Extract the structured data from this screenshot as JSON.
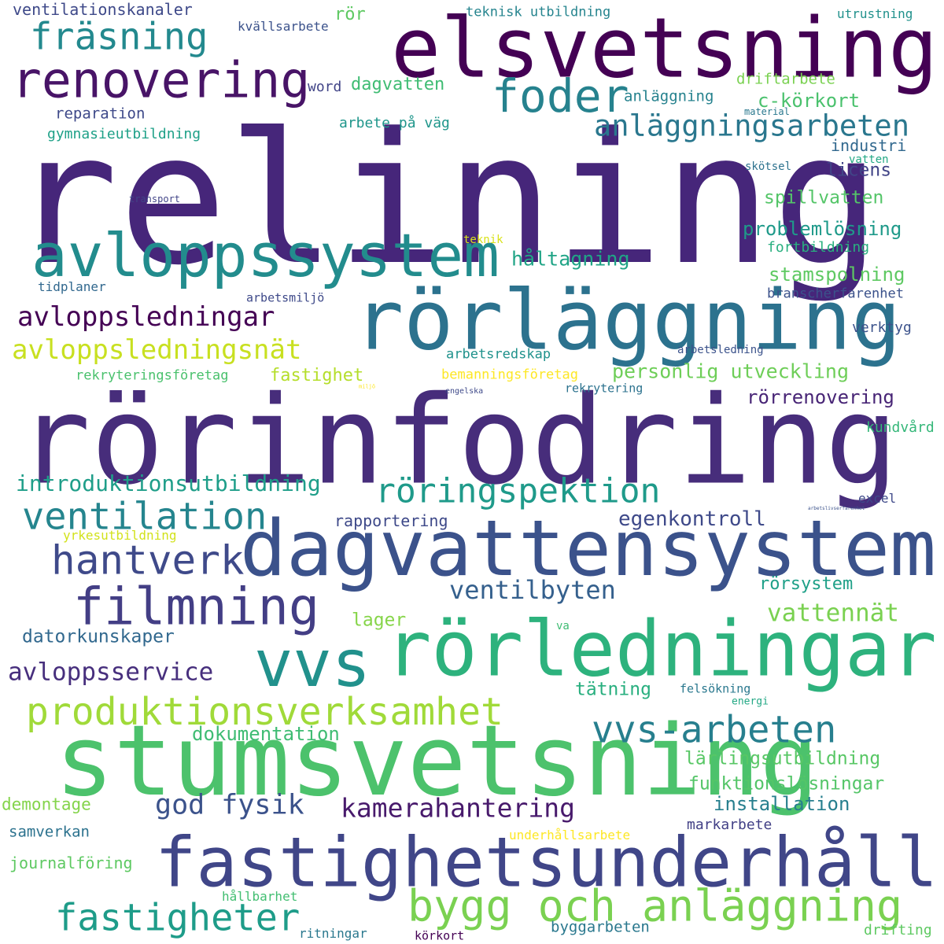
{
  "word_cloud": {
    "words": [
      {
        "text": "relining",
        "color": "#46267a"
      },
      {
        "text": "rörinfodring",
        "color": "#472d7b"
      },
      {
        "text": "elsvetsning",
        "color": "#440154"
      },
      {
        "text": "stumsvetsning",
        "color": "#4cc26c"
      },
      {
        "text": "dagvattensystem",
        "color": "#3b528b"
      },
      {
        "text": "fastighetsunderhåll",
        "color": "#404688"
      },
      {
        "text": "rörläggning",
        "color": "#2c728e"
      },
      {
        "text": "rörledningar",
        "color": "#2db27d"
      },
      {
        "text": "avloppssystem",
        "color": "#228c8d"
      },
      {
        "text": "vvs",
        "color": "#21918c"
      },
      {
        "text": "renovering",
        "color": "#481467"
      },
      {
        "text": "filmning",
        "color": "#433e85"
      },
      {
        "text": "foder",
        "color": "#26828e"
      },
      {
        "text": "fräsning",
        "color": "#23898e"
      },
      {
        "text": "bygg och anläggning",
        "color": "#7ad151"
      },
      {
        "text": "hantverk",
        "color": "#3f4a8a"
      },
      {
        "text": "ventilation",
        "color": "#25858e"
      },
      {
        "text": "produktionsverksamhet",
        "color": "#a0da39"
      },
      {
        "text": "röringspektion",
        "color": "#1f9a8a"
      },
      {
        "text": "fastigheter",
        "color": "#1e9c89"
      },
      {
        "text": "vvs-arbeten",
        "color": "#277f8e"
      },
      {
        "text": "anläggningsarbeten",
        "color": "#2a778e"
      },
      {
        "text": "avloppsledningar",
        "color": "#440154"
      },
      {
        "text": "avloppsledningsnät",
        "color": "#c8e020"
      },
      {
        "text": "god fysik",
        "color": "#3b528b"
      },
      {
        "text": "kamerahantering",
        "color": "#481a6c"
      },
      {
        "text": "ventilbyten",
        "color": "#35608d"
      },
      {
        "text": "avloppsservice",
        "color": "#472f7d"
      },
      {
        "text": "introduktionsutbildning",
        "color": "#1f9e89"
      },
      {
        "text": "vattennät",
        "color": "#7ad151"
      },
      {
        "text": "egenkontroll",
        "color": "#3e4989"
      },
      {
        "text": "personlig utveckling",
        "color": "#6ece58"
      },
      {
        "text": "håltagning",
        "color": "#20a486"
      },
      {
        "text": "problemlösning",
        "color": "#1f9a8a"
      },
      {
        "text": "stamspolning",
        "color": "#5ec962"
      },
      {
        "text": "c-körkort",
        "color": "#4ac16d"
      },
      {
        "text": "spillvatten",
        "color": "#54c568"
      },
      {
        "text": "rörrenovering",
        "color": "#482576"
      },
      {
        "text": "installation",
        "color": "#277f8e"
      },
      {
        "text": "funktionslösningar",
        "color": "#54c568"
      },
      {
        "text": "lärlingsutbildning",
        "color": "#58c765"
      },
      {
        "text": "dokumentation",
        "color": "#3fbc73"
      },
      {
        "text": "datorkunskaper",
        "color": "#31688e"
      },
      {
        "text": "licens",
        "color": "#414487"
      },
      {
        "text": "industri",
        "color": "#31688e"
      },
      {
        "text": "rörsystem",
        "color": "#1fa088"
      },
      {
        "text": "tätning",
        "color": "#29af7f"
      },
      {
        "text": "lager",
        "color": "#86d549"
      },
      {
        "text": "dagvatten",
        "color": "#3fbc73"
      },
      {
        "text": "rör",
        "color": "#5ec962"
      },
      {
        "text": "fastighet",
        "color": "#b5de2b"
      },
      {
        "text": "rapportering",
        "color": "#3e4989"
      },
      {
        "text": "ventilationskanaler",
        "color": "#3e4989"
      },
      {
        "text": "anläggning",
        "color": "#26828e"
      },
      {
        "text": "driftarbete",
        "color": "#7ad151"
      },
      {
        "text": "kundvård",
        "color": "#35b779"
      },
      {
        "text": "demontage",
        "color": "#84d44b"
      },
      {
        "text": "journalföring",
        "color": "#5ec962"
      },
      {
        "text": "samverkan",
        "color": "#2c728e"
      },
      {
        "text": "markarbete",
        "color": "#424086"
      },
      {
        "text": "byggarbeten",
        "color": "#2a788e"
      },
      {
        "text": "drifting",
        "color": "#5ec962"
      },
      {
        "text": "reparation",
        "color": "#3e4989"
      },
      {
        "text": "gymnasieutbildning",
        "color": "#1fa188"
      },
      {
        "text": "arbete på väg",
        "color": "#1f968b"
      },
      {
        "text": "arbetsredskap",
        "color": "#20928c"
      },
      {
        "text": "rekryteringsföretag",
        "color": "#4ac16d"
      },
      {
        "text": "bemanningsföretag",
        "color": "#fde725"
      },
      {
        "text": "branscherfarenhet",
        "color": "#3b528b"
      },
      {
        "text": "verktyg",
        "color": "#3b528b"
      },
      {
        "text": "fortbildning",
        "color": "#29af7f"
      },
      {
        "text": "underhållsarbete",
        "color": "#fde725"
      },
      {
        "text": "yrkesutbildning",
        "color": "#d2e21b"
      },
      {
        "text": "hållbarhet",
        "color": "#42be71"
      },
      {
        "text": "tidplaner",
        "color": "#31688e"
      },
      {
        "text": "arbetsmiljö",
        "color": "#3e4989"
      },
      {
        "text": "teknisk utbildning",
        "color": "#25848e"
      },
      {
        "text": "utrustning",
        "color": "#21918c"
      },
      {
        "text": "kvällsarbete",
        "color": "#3b528b"
      },
      {
        "text": "word",
        "color": "#414487"
      },
      {
        "text": "rekrytering",
        "color": "#2c728e"
      },
      {
        "text": "felsökning",
        "color": "#2a788e"
      },
      {
        "text": "excel",
        "color": "#3e4989"
      },
      {
        "text": "ritningar",
        "color": "#2a788e"
      },
      {
        "text": "körkort",
        "color": "#440154"
      },
      {
        "text": "skötsel",
        "color": "#2c728e"
      },
      {
        "text": "vatten",
        "color": "#22a884"
      },
      {
        "text": "teknik",
        "color": "#d8e219"
      },
      {
        "text": "material",
        "color": "#2a788e"
      },
      {
        "text": "energi",
        "color": "#22a884"
      },
      {
        "text": "va",
        "color": "#3fbc73"
      },
      {
        "text": "arbetsledning",
        "color": "#3b528b"
      },
      {
        "text": "engelska",
        "color": "#3e4989"
      },
      {
        "text": "transport",
        "color": "#414487"
      },
      {
        "text": "miljö",
        "color": "#fde725"
      },
      {
        "text": "arbetslivserfarenhet",
        "color": "#3b528b"
      }
    ]
  }
}
